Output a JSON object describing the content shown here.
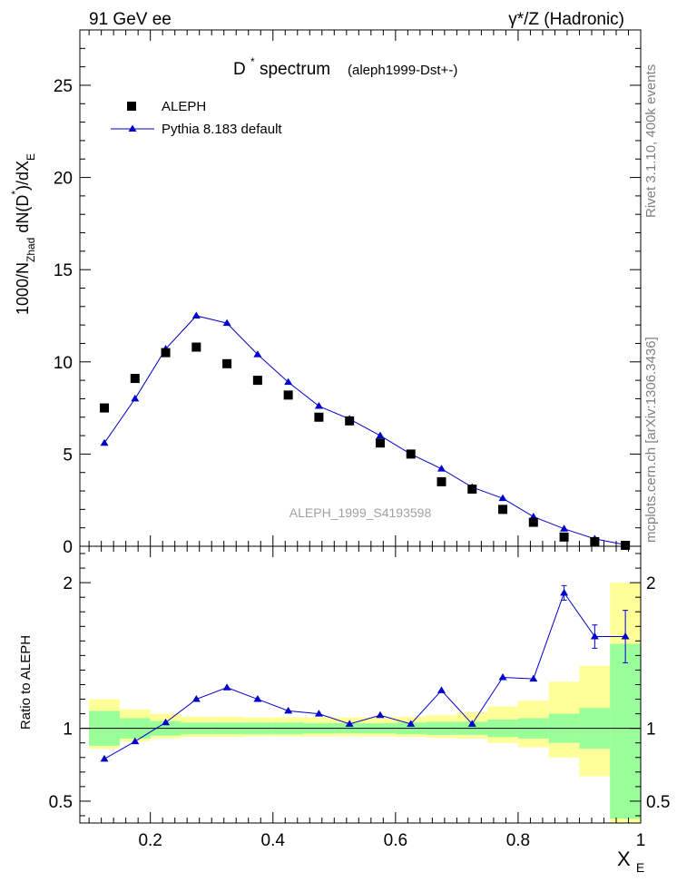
{
  "header": {
    "left": "91 GeV ee",
    "right": "γ*/Z (Hadronic)"
  },
  "side": {
    "rivet": "Rivet 3.1.10,  400k events",
    "mcplots": "mcplots.cern.ch [arXiv:1306.3436]"
  },
  "chart_data": [
    {
      "type": "scatter",
      "title": "D* spectrum",
      "title_main": "D",
      "title_sup": "*",
      "title_rest": " spectrum",
      "subtitle": "(aleph1999-Dst+-)",
      "watermark": "ALEPH_1999_S4193598",
      "ylabel": "1000/N_Zhad dN(D*)/dX_E",
      "xlim": [
        0.085,
        1.0
      ],
      "ylim": [
        0,
        28
      ],
      "yticks": [
        0,
        5,
        10,
        15,
        20,
        25
      ],
      "legend_position": "top-left",
      "x": [
        0.125,
        0.175,
        0.225,
        0.275,
        0.325,
        0.375,
        0.425,
        0.475,
        0.525,
        0.575,
        0.625,
        0.675,
        0.725,
        0.775,
        0.825,
        0.875,
        0.925,
        0.975
      ],
      "series": [
        {
          "name": "ALEPH",
          "marker": "square",
          "color": "#000000",
          "values": [
            7.5,
            9.1,
            10.5,
            10.8,
            9.9,
            9.0,
            8.2,
            7.0,
            6.8,
            5.6,
            5.0,
            3.5,
            3.1,
            2.0,
            1.3,
            0.5,
            0.25,
            0.05
          ]
        },
        {
          "name": "Pythia 8.183 default",
          "marker": "triangle",
          "color": "#0000cc",
          "values": [
            5.6,
            8.0,
            10.7,
            12.5,
            12.1,
            10.4,
            8.9,
            7.6,
            6.9,
            6.0,
            5.0,
            4.2,
            3.2,
            2.6,
            1.6,
            0.95,
            0.4,
            0.08
          ]
        }
      ]
    },
    {
      "type": "line",
      "ylabel": "Ratio to ALEPH",
      "xlabel": "X_E",
      "xlabel_main": "X",
      "xlabel_sub": "E",
      "xlim": [
        0.085,
        1.0
      ],
      "ylim": [
        0.35,
        2.25
      ],
      "xticks": [
        0.2,
        0.4,
        0.6,
        0.8,
        1
      ],
      "xtick_labels": [
        "0.2",
        "0.4",
        "0.6",
        "0.8",
        "1"
      ],
      "yticks": [
        0.5,
        1,
        2
      ],
      "ytick_labels": [
        "0.5",
        "1",
        "2"
      ],
      "x": [
        0.125,
        0.175,
        0.225,
        0.275,
        0.325,
        0.375,
        0.425,
        0.475,
        0.525,
        0.575,
        0.625,
        0.675,
        0.725,
        0.775,
        0.825,
        0.875,
        0.925,
        0.975
      ],
      "bin_edges": [
        0.1,
        0.15,
        0.2,
        0.25,
        0.3,
        0.35,
        0.4,
        0.45,
        0.5,
        0.55,
        0.6,
        0.65,
        0.7,
        0.75,
        0.8,
        0.85,
        0.9,
        0.95,
        1.0
      ],
      "band_colors": {
        "inner": "#99ff99",
        "outer": "#ffff99"
      },
      "band_inner": [
        [
          0.88,
          1.12
        ],
        [
          0.93,
          1.07
        ],
        [
          0.95,
          1.05
        ],
        [
          0.96,
          1.04
        ],
        [
          0.96,
          1.04
        ],
        [
          0.96,
          1.04
        ],
        [
          0.96,
          1.04
        ],
        [
          0.965,
          1.035
        ],
        [
          0.965,
          1.035
        ],
        [
          0.965,
          1.035
        ],
        [
          0.96,
          1.04
        ],
        [
          0.955,
          1.045
        ],
        [
          0.955,
          1.045
        ],
        [
          0.94,
          1.06
        ],
        [
          0.93,
          1.07
        ],
        [
          0.9,
          1.1
        ],
        [
          0.86,
          1.14
        ],
        [
          0.38,
          1.58
        ]
      ],
      "band_outer": [
        [
          0.86,
          1.2
        ],
        [
          0.91,
          1.13
        ],
        [
          0.93,
          1.1
        ],
        [
          0.94,
          1.08
        ],
        [
          0.94,
          1.08
        ],
        [
          0.945,
          1.075
        ],
        [
          0.945,
          1.075
        ],
        [
          0.945,
          1.075
        ],
        [
          0.945,
          1.075
        ],
        [
          0.945,
          1.075
        ],
        [
          0.94,
          1.08
        ],
        [
          0.935,
          1.09
        ],
        [
          0.93,
          1.11
        ],
        [
          0.9,
          1.15
        ],
        [
          0.87,
          1.19
        ],
        [
          0.8,
          1.32
        ],
        [
          0.67,
          1.43
        ],
        [
          0.35,
          2.0
        ]
      ],
      "series": [
        {
          "name": "Pythia 8.183 default",
          "color": "#0000cc",
          "values": [
            0.79,
            0.91,
            1.04,
            1.2,
            1.28,
            1.2,
            1.12,
            1.1,
            1.03,
            1.09,
            1.03,
            1.26,
            1.03,
            1.35,
            1.34,
            1.93,
            1.63,
            1.63
          ],
          "errors": [
            0,
            0,
            0,
            0,
            0,
            0,
            0,
            0,
            0,
            0,
            0,
            0,
            0,
            0,
            0,
            0.05,
            0.08,
            0.18
          ]
        }
      ]
    }
  ]
}
